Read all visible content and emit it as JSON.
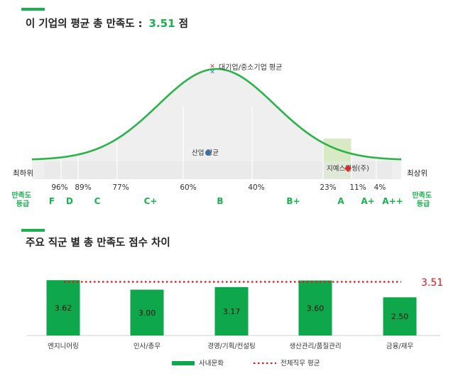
{
  "colors": {
    "accent": "#1cb150",
    "bar": "#0ea74b",
    "average_line": "#e8141c",
    "highlight_band": "#d8eac4",
    "marker": "#e02a2a",
    "industry_dot": "#3a6ea5"
  },
  "section1": {
    "title": "이 기업의 평균 총 만족도 :",
    "score": "3.51",
    "score_unit": "점"
  },
  "section2": {
    "title": "주요 직군 별 총 만족도 점수 차이"
  },
  "chart_data": [
    {
      "type": "area",
      "description": "satisfaction distribution curve with grade bands",
      "left_label": "최하위",
      "right_label": "최상위",
      "grade_row_label_left": "만족도\n등급",
      "grade_row_label_right": "만족도\n등급",
      "percentile_labels": [
        "96%",
        "89%",
        "77%",
        "60%",
        "40%",
        "23%",
        "11%",
        "4%"
      ],
      "grades": [
        "F",
        "D",
        "C",
        "C+",
        "B",
        "B+",
        "A",
        "A+",
        "A++"
      ],
      "markers": {
        "large_small_avg": "대기업/중소기업 평균",
        "industry_avg": "산업 평균",
        "company": "지예스앤씽(주)"
      },
      "company_band": "A"
    },
    {
      "type": "bar",
      "categories": [
        "엔지니어링",
        "인사/총무",
        "경영/기획/컨설팅",
        "생산관리/품질관리",
        "금융/재무"
      ],
      "values": [
        3.62,
        3.0,
        3.17,
        3.6,
        2.5
      ],
      "value_labels": [
        "3.62",
        "3.00",
        "3.17",
        "3.60",
        "2.50"
      ],
      "average": 3.51,
      "average_label": "3.51",
      "series": [
        {
          "name": "사내문화",
          "values": [
            3.62,
            3.0,
            3.17,
            3.6,
            2.5
          ]
        },
        {
          "name": "전체직무 평균",
          "values": [
            3.51,
            3.51,
            3.51,
            3.51,
            3.51
          ]
        }
      ],
      "legend_position": "bottom-center"
    }
  ]
}
